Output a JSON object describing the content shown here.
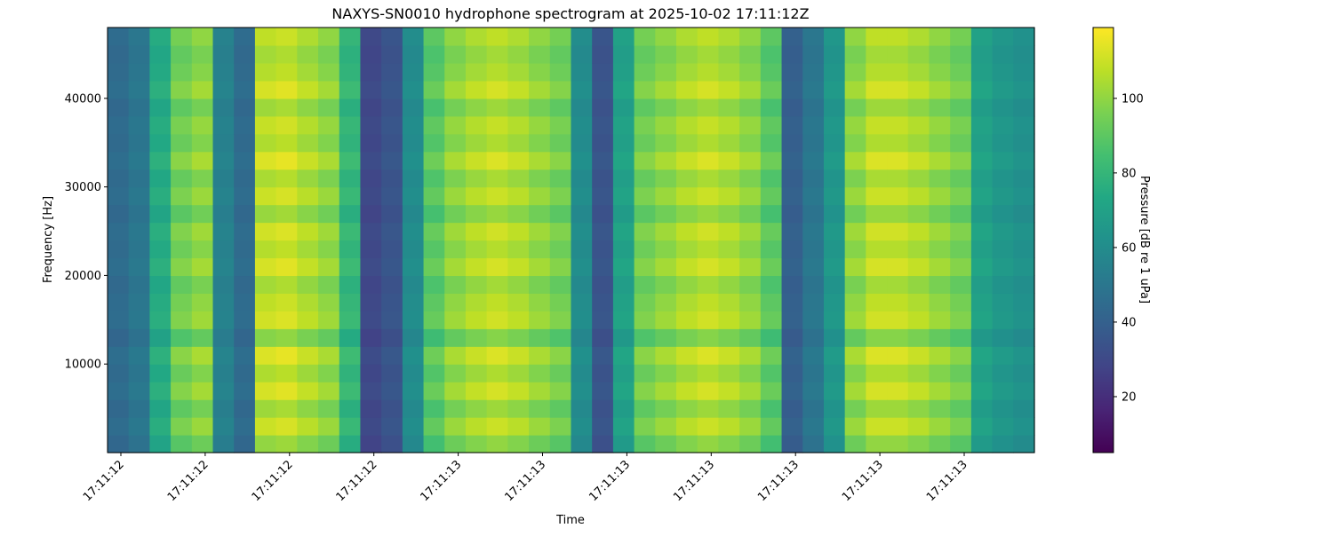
{
  "chart_data": {
    "type": "heatmap",
    "title": "NAXYS-SN0010 hydrophone spectrogram at 2025-10-02 17:11:12Z",
    "xlabel": "Time",
    "ylabel": "Frequency [Hz]",
    "x_tick_labels": [
      "17:11:12",
      "17:11:12",
      "17:11:12",
      "17:11:12",
      "17:11:13",
      "17:11:13",
      "17:11:13",
      "17:11:13",
      "17:11:13",
      "17:11:13",
      "17:11:13"
    ],
    "y_ticks": [
      10000,
      20000,
      30000,
      40000
    ],
    "ylim": [
      0,
      48000
    ],
    "colormap": "viridis",
    "colorbar": {
      "label": "Pressure [dB re 1 uPa]",
      "range": [
        5,
        119
      ],
      "ticks": [
        20,
        40,
        60,
        80,
        100
      ]
    },
    "time_bin_levels_db": [
      45,
      50,
      75,
      95,
      100,
      55,
      45,
      108,
      110,
      105,
      100,
      80,
      30,
      35,
      60,
      90,
      100,
      105,
      108,
      105,
      100,
      95,
      60,
      35,
      70,
      95,
      100,
      105,
      108,
      105,
      100,
      90,
      40,
      50,
      65,
      100,
      108,
      108,
      105,
      100,
      95,
      70,
      65,
      62
    ],
    "frequency_bin_offsets_db": [
      -8,
      2,
      -6,
      4,
      -3,
      5,
      -10,
      3,
      0,
      -5,
      4,
      -2,
      3,
      -7,
      2,
      -4,
      5,
      -3,
      1,
      -6,
      4,
      -2,
      -5,
      0
    ]
  }
}
